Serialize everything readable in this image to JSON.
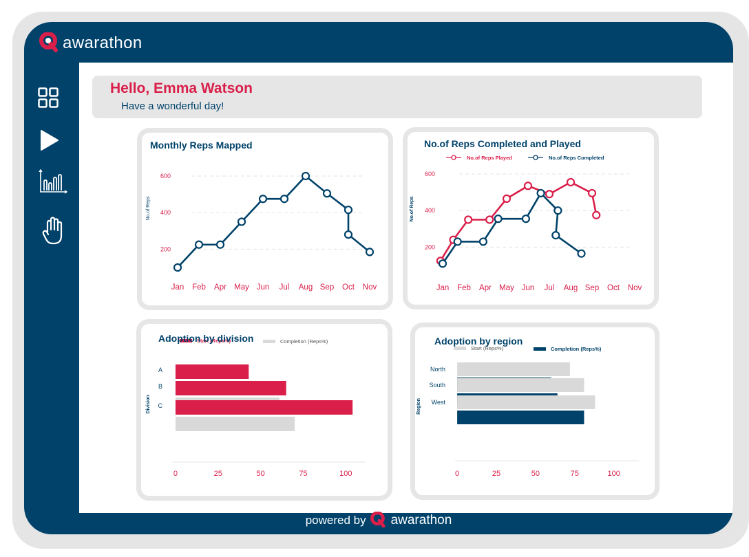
{
  "brand": {
    "name": "awarathon"
  },
  "sidebar": {
    "items": [
      {
        "icon": "dashboard-grid-icon"
      },
      {
        "icon": "play-icon"
      },
      {
        "icon": "bar-chart-icon"
      },
      {
        "icon": "hand-icon"
      }
    ]
  },
  "greeting": {
    "title": "Hello, Emma Watson",
    "subtitle": "Have a wonderful day!"
  },
  "footer": {
    "powered_by": "powered by",
    "brand": "awarathon"
  },
  "colors": {
    "navy": "#00426a",
    "red": "#d91f4a",
    "grey": "#d9d9d9",
    "frame": "#e6e6e6"
  },
  "chart_data": [
    {
      "type": "line",
      "title": "Monthly Reps Mapped",
      "ylabel": "No.of Reps",
      "x": [
        "Jan",
        "Feb",
        "Apr",
        "May",
        "Jun",
        "Jul",
        "Aug",
        "Sep",
        "Oct",
        "Nov"
      ],
      "yticks": [
        200,
        400,
        600
      ],
      "ylim": [
        100,
        630
      ],
      "series": [
        {
          "color": "#00426a",
          "points": [
            {
              "x": 0,
              "y": 100
            },
            {
              "x": 1,
              "y": 225
            },
            {
              "x": 2,
              "y": 225
            },
            {
              "x": 3,
              "y": 350
            },
            {
              "x": 4,
              "y": 475
            },
            {
              "x": 5,
              "y": 475
            },
            {
              "x": 6,
              "y": 600
            },
            {
              "x": 7,
              "y": 505
            },
            {
              "x": 8,
              "y": 415
            },
            {
              "x": 8,
              "y": 280
            },
            {
              "x": 9,
              "y": 185
            }
          ]
        }
      ],
      "grid": true
    },
    {
      "type": "line",
      "title": "No.of Reps Completed and Played",
      "ylabel": "No.of Reps",
      "x": [
        "Jan",
        "Feb",
        "Apr",
        "May",
        "Jun",
        "Jul",
        "Aug",
        "Sep",
        "Oct",
        "Nov"
      ],
      "yticks": [
        200,
        400,
        600
      ],
      "ylim": [
        100,
        630
      ],
      "legend": "top-left",
      "series": [
        {
          "name": "No.of Reps Played",
          "color": "#d91f4a",
          "points": [
            {
              "x": -0.1,
              "y": 125
            },
            {
              "x": 0.5,
              "y": 240
            },
            {
              "x": 1.2,
              "y": 350
            },
            {
              "x": 2.2,
              "y": 350
            },
            {
              "x": 3,
              "y": 465
            },
            {
              "x": 4,
              "y": 535
            },
            {
              "x": 5,
              "y": 490
            },
            {
              "x": 6,
              "y": 555
            },
            {
              "x": 7,
              "y": 495
            },
            {
              "x": 7.2,
              "y": 375
            }
          ]
        },
        {
          "name": "No.of Reps Completed",
          "color": "#00426a",
          "points": [
            {
              "x": 0,
              "y": 110
            },
            {
              "x": 0.7,
              "y": 230
            },
            {
              "x": 1.9,
              "y": 230
            },
            {
              "x": 2.6,
              "y": 355
            },
            {
              "x": 3.9,
              "y": 355
            },
            {
              "x": 4.6,
              "y": 495
            },
            {
              "x": 5.4,
              "y": 400
            },
            {
              "x": 5.3,
              "y": 265
            },
            {
              "x": 6.5,
              "y": 165
            }
          ]
        }
      ],
      "grid": true
    },
    {
      "type": "bar",
      "orientation": "horizontal",
      "title": "Adoption by division",
      "ylabel": "Division",
      "categories": [
        "A",
        "B",
        "C"
      ],
      "series": [
        {
          "name": "Start (Reps%)",
          "color": "#d91f4a",
          "values": [
            43,
            65,
            104
          ]
        },
        {
          "name": "Completion (Reps%)",
          "color": "#d9d9d9",
          "values": [
            61,
            61,
            70
          ]
        }
      ],
      "xticks": [
        0,
        25,
        50,
        75,
        100
      ],
      "xlim": [
        -2,
        110
      ],
      "legend": "top"
    },
    {
      "type": "bar",
      "orientation": "horizontal",
      "title": "Adoption by region",
      "ylabel": "Region",
      "categories": [
        "North",
        "South",
        "West"
      ],
      "series": [
        {
          "name": "Start (Reps%)",
          "color": "#d9d9d9",
          "values": [
            72,
            81,
            88
          ]
        },
        {
          "name": "Completion (Reps%)",
          "color": "#00426a",
          "values": [
            60,
            64,
            81
          ]
        }
      ],
      "xticks": [
        0,
        25,
        50,
        75,
        100
      ],
      "xlim": [
        -4,
        112
      ],
      "legend": "top"
    }
  ]
}
